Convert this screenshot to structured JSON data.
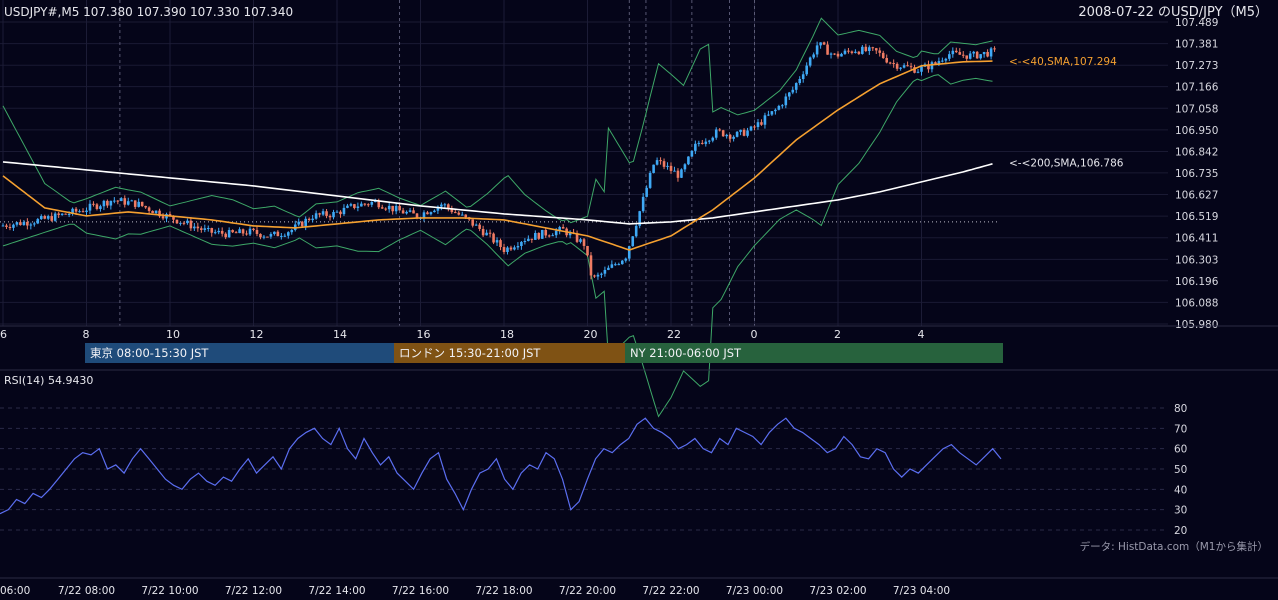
{
  "header": {
    "symbol_info": "USDJPY#,M5 107.380 107.390 107.330 107.340",
    "title": "2008-07-22 のUSD/JPY（M5）"
  },
  "sessions": [
    {
      "label": "東京 08:00-15:30 JST",
      "color": "#1f4b7a"
    },
    {
      "label": "ロンドン 15:30-21:00 JST",
      "color": "#7f5214"
    },
    {
      "label": "NY 21:00-06:00 JST",
      "color": "#27623d"
    }
  ],
  "annotations": {
    "sma40": "<-<40,SMA,107.294",
    "sma200": "<-<200,SMA,106.786"
  },
  "rsi": {
    "label": "RSI(14) 54.9430"
  },
  "source_note": "データ: HistData.com（M1から集計）",
  "colors": {
    "background": "#050519",
    "bull_candle": "#3fa9f5",
    "bear_candle": "#ef7b63",
    "sma40": "#f5a030",
    "sma200": "#ffffff",
    "bollinger": "#3ea868",
    "rsi_line": "#5b6ef0",
    "sma40_label": "#f5a030",
    "sma200_label": "#e6e6ec"
  },
  "chart_data": [
    {
      "type": "candlestick",
      "title": "USDJPY M5",
      "y_ticks": [
        "107.489",
        "107.381",
        "107.273",
        "107.166",
        "107.058",
        "106.950",
        "106.842",
        "106.735",
        "106.627",
        "106.519",
        "106.411",
        "106.303",
        "106.196",
        "106.088",
        "105.980"
      ],
      "ylim": [
        105.98,
        107.489
      ],
      "x_ticks": [
        "6",
        "8",
        "10",
        "12",
        "14",
        "16",
        "18",
        "20",
        "22",
        "0",
        "2",
        "4"
      ],
      "series": [
        {
          "name": "SMA 40",
          "last_value": 107.294
        },
        {
          "name": "SMA 200",
          "last_value": 106.786
        },
        {
          "name": "Bollinger Bands"
        }
      ],
      "reference_line": 106.49,
      "price_path": [
        [
          6.0,
          106.47
        ],
        [
          7.0,
          106.5
        ],
        [
          8.0,
          106.55
        ],
        [
          8.7,
          106.6
        ],
        [
          9.3,
          106.58
        ],
        [
          10.0,
          106.52
        ],
        [
          10.5,
          106.48
        ],
        [
          11.0,
          106.44
        ],
        [
          11.5,
          106.43
        ],
        [
          12.0,
          106.44
        ],
        [
          12.5,
          106.42
        ],
        [
          13.0,
          106.45
        ],
        [
          13.5,
          106.52
        ],
        [
          14.0,
          106.53
        ],
        [
          14.5,
          106.57
        ],
        [
          15.0,
          106.59
        ],
        [
          15.5,
          106.55
        ],
        [
          16.0,
          106.52
        ],
        [
          16.6,
          106.58
        ],
        [
          17.2,
          106.5
        ],
        [
          17.6,
          106.44
        ],
        [
          18.1,
          106.35
        ],
        [
          18.5,
          106.4
        ],
        [
          19.0,
          106.43
        ],
        [
          19.5,
          106.45
        ],
        [
          20.0,
          106.38
        ],
        [
          20.2,
          106.2
        ],
        [
          20.5,
          106.24
        ],
        [
          21.0,
          106.32
        ],
        [
          21.3,
          106.52
        ],
        [
          21.7,
          106.8
        ],
        [
          22.0,
          106.76
        ],
        [
          22.3,
          106.72
        ],
        [
          22.7,
          106.88
        ],
        [
          23.2,
          106.94
        ],
        [
          23.6,
          106.92
        ],
        [
          24.0,
          106.95
        ],
        [
          24.6,
          107.05
        ],
        [
          25.0,
          107.15
        ],
        [
          25.4,
          107.3
        ],
        [
          25.6,
          107.38
        ],
        [
          26.0,
          107.32
        ],
        [
          26.5,
          107.35
        ],
        [
          27.0,
          107.34
        ],
        [
          27.4,
          107.28
        ],
        [
          28.0,
          107.25
        ],
        [
          28.4,
          107.28
        ],
        [
          28.7,
          107.33
        ],
        [
          29.3,
          107.32
        ],
        [
          29.8,
          107.34
        ]
      ],
      "sma40_path": [
        [
          6.0,
          106.72
        ],
        [
          7.0,
          106.56
        ],
        [
          8.0,
          106.52
        ],
        [
          9.0,
          106.54
        ],
        [
          10.0,
          106.52
        ],
        [
          11.0,
          106.5
        ],
        [
          12.0,
          106.47
        ],
        [
          13.0,
          106.46
        ],
        [
          14.0,
          106.48
        ],
        [
          15.0,
          106.5
        ],
        [
          16.0,
          106.51
        ],
        [
          17.0,
          106.51
        ],
        [
          18.0,
          106.5
        ],
        [
          19.0,
          106.46
        ],
        [
          20.0,
          106.42
        ],
        [
          21.0,
          106.35
        ],
        [
          22.0,
          106.42
        ],
        [
          23.0,
          106.55
        ],
        [
          24.0,
          106.71
        ],
        [
          25.0,
          106.9
        ],
        [
          26.0,
          107.05
        ],
        [
          27.0,
          107.18
        ],
        [
          28.0,
          107.27
        ],
        [
          29.0,
          107.29
        ],
        [
          29.8,
          107.294
        ]
      ],
      "sma200_path": [
        [
          6.0,
          106.79
        ],
        [
          8.0,
          106.75
        ],
        [
          10.0,
          106.71
        ],
        [
          12.0,
          106.67
        ],
        [
          14.0,
          106.62
        ],
        [
          16.0,
          106.57
        ],
        [
          18.0,
          106.53
        ],
        [
          20.0,
          106.5
        ],
        [
          21.0,
          106.48
        ],
        [
          22.0,
          106.49
        ],
        [
          23.0,
          106.51
        ],
        [
          24.0,
          106.54
        ],
        [
          25.0,
          106.57
        ],
        [
          26.0,
          106.6
        ],
        [
          27.0,
          106.64
        ],
        [
          28.0,
          106.69
        ],
        [
          29.0,
          106.74
        ],
        [
          29.8,
          106.786
        ]
      ]
    },
    {
      "type": "line",
      "title": "RSI(14) 54.9430",
      "y_ticks": [
        "80",
        "70",
        "60",
        "50",
        "40",
        "30",
        "20"
      ],
      "ylim": [
        20,
        80
      ],
      "x_ticks": [
        "06:00",
        "7/22 08:00",
        "7/22 10:00",
        "7/22 12:00",
        "7/22 14:00",
        "7/22 16:00",
        "7/22 18:00",
        "7/22 20:00",
        "7/22 22:00",
        "7/23 00:00",
        "7/23 02:00",
        "7/23 04:00"
      ],
      "series": [
        {
          "values": [
            28,
            30,
            35,
            33,
            38,
            36,
            40,
            45,
            50,
            55,
            58,
            57,
            60,
            50,
            52,
            48,
            55,
            60,
            55,
            50,
            45,
            42,
            40,
            45,
            48,
            44,
            42,
            46,
            44,
            50,
            55,
            48,
            52,
            56,
            50,
            60,
            65,
            68,
            70,
            65,
            62,
            70,
            60,
            55,
            65,
            58,
            52,
            56,
            48,
            44,
            40,
            48,
            55,
            58,
            45,
            38,
            30,
            40,
            48,
            50,
            55,
            45,
            40,
            48,
            52,
            50,
            58,
            55,
            45,
            30,
            34,
            45,
            55,
            60,
            58,
            62,
            65,
            72,
            75,
            70,
            68,
            65,
            60,
            62,
            65,
            60,
            58,
            65,
            62,
            70,
            68,
            66,
            62,
            68,
            72,
            75,
            70,
            68,
            65,
            62,
            58,
            60,
            66,
            62,
            56,
            55,
            60,
            58,
            50,
            46,
            50,
            48,
            52,
            56,
            60,
            62,
            58,
            55,
            52,
            56,
            60,
            54.943
          ]
        }
      ]
    }
  ]
}
